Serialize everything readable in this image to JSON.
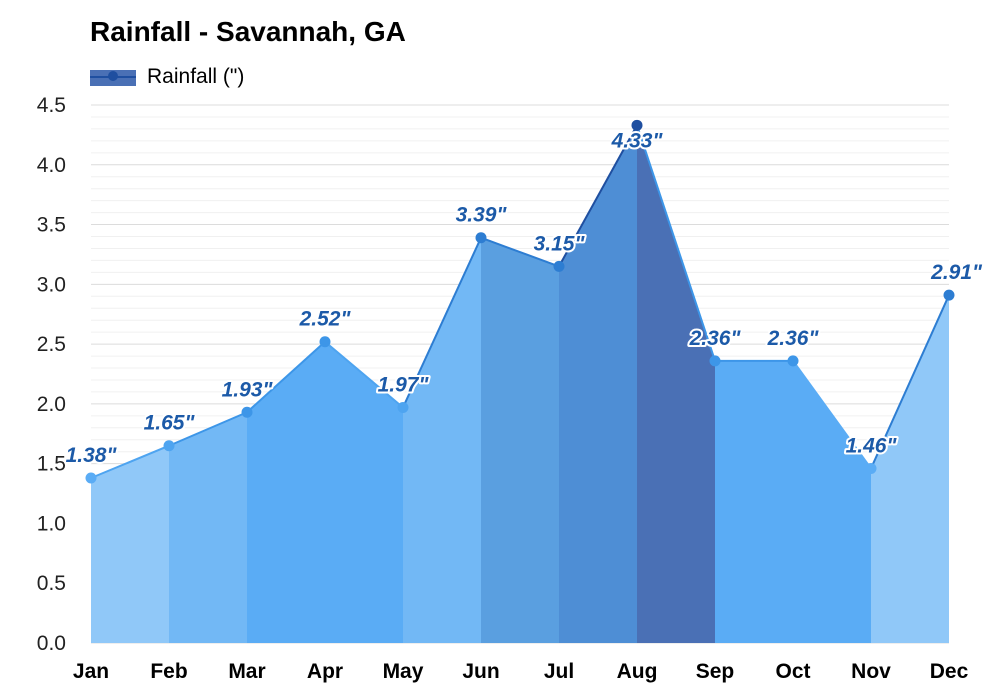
{
  "chart_data": {
    "type": "area",
    "title": "Rainfall - Savannah, GA",
    "legend": {
      "label": "Rainfall (\")",
      "position": "top-left"
    },
    "categories": [
      "Jan",
      "Feb",
      "Mar",
      "Apr",
      "May",
      "Jun",
      "Jul",
      "Aug",
      "Sep",
      "Oct",
      "Nov",
      "Dec"
    ],
    "series": [
      {
        "name": "Rainfall (\")",
        "values": [
          1.38,
          1.65,
          1.93,
          2.52,
          1.97,
          3.39,
          3.15,
          4.33,
          2.36,
          2.36,
          1.46,
          2.91
        ],
        "labels": [
          "1.38\"",
          "1.65\"",
          "1.93\"",
          "2.52\"",
          "1.97\"",
          "3.39\"",
          "3.15\"",
          "4.33\"",
          "2.36\"",
          "2.36\"",
          "1.46\"",
          "2.91\""
        ]
      }
    ],
    "yticks": [
      "0.0",
      "0.5",
      "1.0",
      "1.5",
      "2.0",
      "2.5",
      "3.0",
      "3.5",
      "4.0",
      "4.5"
    ],
    "ylim": [
      0,
      4.5
    ],
    "grid": true,
    "colors": {
      "segment_fills": [
        "#90c8f8",
        "#72b8f5",
        "#5aacf5",
        "#5aacf5",
        "#72b8f5",
        "#5a9fe0",
        "#4e8ed5",
        "#4a70b5",
        "#5aacf5",
        "#5aacf5",
        "#90c8f8",
        "#5a9fe0"
      ],
      "marker_colors": [
        "#5aacf5",
        "#4ea4f0",
        "#3d96e8",
        "#3d96e8",
        "#4ea4f0",
        "#2d7dd2",
        "#2d7dd2",
        "#1f4fa0",
        "#3d96e8",
        "#3d96e8",
        "#5aacf5",
        "#2d7dd2"
      ],
      "label": "#1c5aa8",
      "legend_fill": "#4a70b5",
      "legend_marker": "#1f4fa0",
      "grid": "#e6e6e6"
    }
  }
}
